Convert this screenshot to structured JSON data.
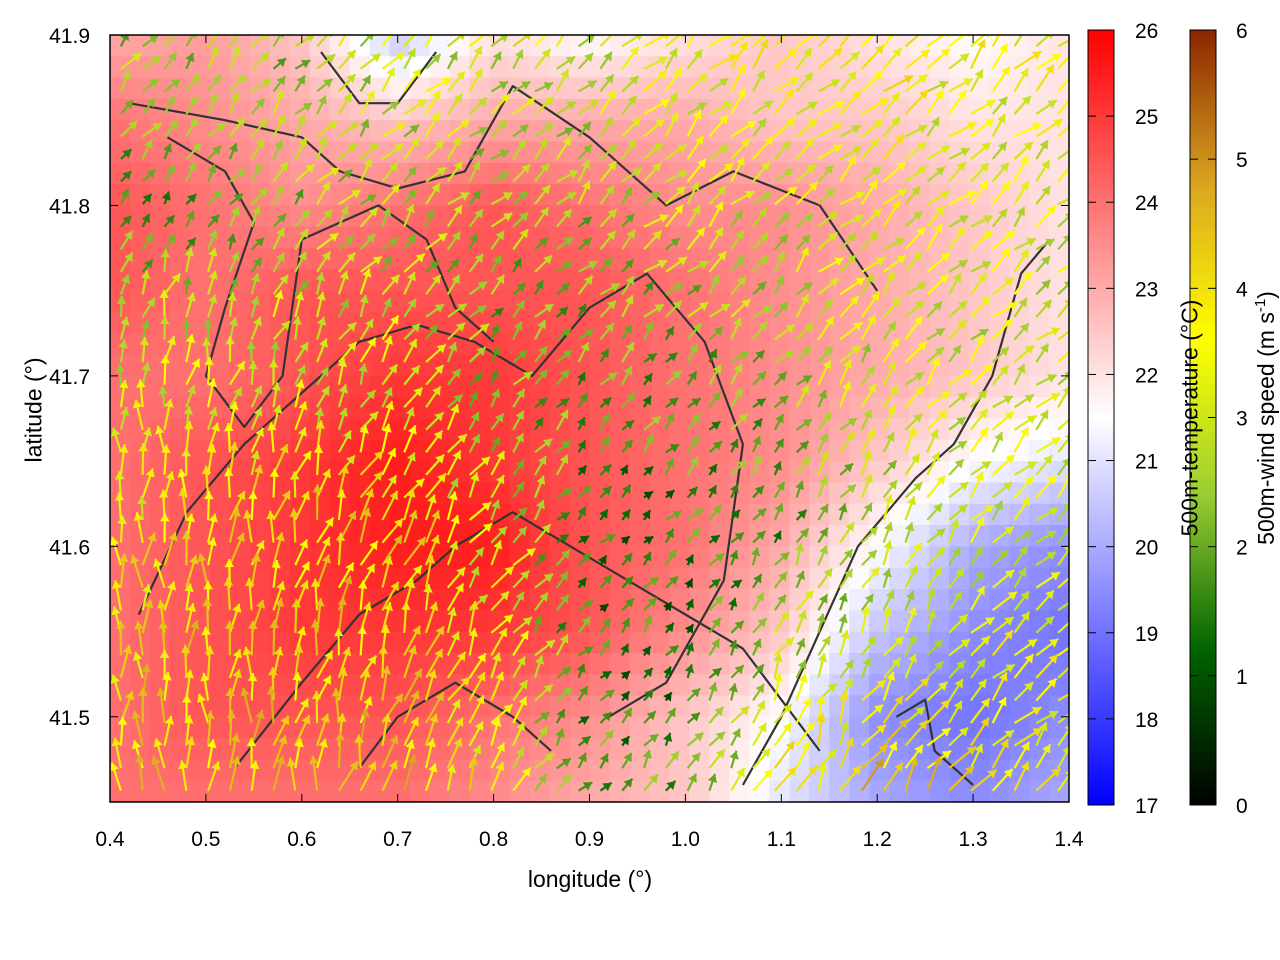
{
  "chart_data": {
    "type": "heatmap",
    "title": "",
    "xlabel": "longitude (°)",
    "ylabel": "latitude (°)",
    "xlim": [
      0.4,
      1.4
    ],
    "ylim": [
      41.45,
      41.9
    ],
    "x_ticks": [
      "0.4",
      "0.5",
      "0.6",
      "0.7",
      "0.8",
      "0.9",
      "1.0",
      "1.1",
      "1.2",
      "1.3",
      "1.4"
    ],
    "y_ticks": [
      "41.5",
      "41.6",
      "41.7",
      "41.8",
      "41.9"
    ],
    "grid": false,
    "colorbars": [
      {
        "label": "500m-temperature (°C)",
        "range": [
          17,
          26
        ],
        "ticks": [
          "17",
          "18",
          "19",
          "20",
          "21",
          "22",
          "23",
          "24",
          "25",
          "26"
        ],
        "colors": [
          "#0000ff",
          "#ffffff",
          "#ff0000"
        ]
      },
      {
        "label_main": "500m-wind speed (m s",
        "label_sup": "-1",
        "label_end": ")",
        "range": [
          0,
          6
        ],
        "ticks": [
          "0",
          "1",
          "2",
          "3",
          "4",
          "5",
          "6"
        ],
        "colors": [
          "#000000",
          "#006400",
          "#9acd32",
          "#ffff00",
          "#daa520",
          "#8b2500"
        ]
      }
    ],
    "temperature_field": {
      "description_values": "approximate 500m-temperature (°C) on a 10x9 lon/lat grid",
      "lon": [
        0.4,
        0.5,
        0.6,
        0.7,
        0.8,
        0.9,
        1.0,
        1.1,
        1.2,
        1.3,
        1.4
      ],
      "lat": [
        41.9,
        41.85,
        41.8,
        41.75,
        41.7,
        41.65,
        41.6,
        41.55,
        41.5,
        41.45
      ],
      "values": [
        [
          23.0,
          23.2,
          22.5,
          20.5,
          22.0,
          21.5,
          22.0,
          22.5,
          22.0,
          21.5,
          22.0
        ],
        [
          24.0,
          23.5,
          23.0,
          22.5,
          23.0,
          23.0,
          23.0,
          22.5,
          22.5,
          22.0,
          22.0
        ],
        [
          24.5,
          24.0,
          23.5,
          24.0,
          24.5,
          24.0,
          23.5,
          23.5,
          23.0,
          22.5,
          22.0
        ],
        [
          24.5,
          24.0,
          24.5,
          24.5,
          24.5,
          24.5,
          24.0,
          23.5,
          23.0,
          22.5,
          22.0
        ],
        [
          24.0,
          24.0,
          24.5,
          25.0,
          25.0,
          24.5,
          24.0,
          23.5,
          23.0,
          22.5,
          22.0
        ],
        [
          24.0,
          24.5,
          25.0,
          25.5,
          25.0,
          24.5,
          24.0,
          23.5,
          22.5,
          21.5,
          21.0
        ],
        [
          24.0,
          24.5,
          25.0,
          25.5,
          25.5,
          24.5,
          24.0,
          23.0,
          21.5,
          20.0,
          19.5
        ],
        [
          24.0,
          24.5,
          25.0,
          25.0,
          25.0,
          24.5,
          23.5,
          22.5,
          20.5,
          19.5,
          19.0
        ],
        [
          24.0,
          24.5,
          24.5,
          24.5,
          24.0,
          23.5,
          22.5,
          21.5,
          19.5,
          19.0,
          19.5
        ],
        [
          24.0,
          24.0,
          24.0,
          24.0,
          23.5,
          23.0,
          22.5,
          21.0,
          20.0,
          19.5,
          20.0
        ]
      ]
    },
    "wind_field": {
      "lon": [
        0.4,
        0.5,
        0.6,
        0.7,
        0.8,
        0.9,
        1.0,
        1.1,
        1.2,
        1.3,
        1.4
      ],
      "lat": [
        41.9,
        41.8,
        41.7,
        41.6,
        41.5,
        41.45
      ],
      "speed": [
        [
          2.5,
          2.5,
          2.5,
          3.0,
          3.0,
          3.0,
          3.5,
          3.5,
          3.5,
          3.5,
          3.5
        ],
        [
          2.0,
          2.0,
          2.5,
          2.5,
          2.5,
          2.5,
          3.0,
          3.0,
          3.5,
          3.0,
          3.0
        ],
        [
          3.0,
          3.0,
          3.0,
          3.0,
          2.0,
          2.0,
          2.0,
          2.5,
          3.0,
          3.0,
          3.0
        ],
        [
          3.5,
          4.0,
          4.0,
          4.0,
          3.0,
          1.5,
          1.5,
          2.0,
          2.5,
          3.0,
          3.0
        ],
        [
          4.0,
          4.0,
          4.0,
          4.0,
          3.5,
          1.5,
          1.5,
          3.0,
          3.5,
          3.5,
          3.5
        ],
        [
          4.0,
          4.0,
          4.5,
          4.5,
          3.5,
          2.0,
          2.0,
          4.0,
          4.5,
          4.0,
          3.5
        ]
      ],
      "direction_to_deg": [
        [
          45,
          50,
          50,
          45,
          45,
          45,
          45,
          45,
          45,
          45,
          45
        ],
        [
          60,
          55,
          50,
          50,
          45,
          45,
          45,
          45,
          45,
          45,
          45
        ],
        [
          90,
          80,
          70,
          60,
          50,
          45,
          45,
          50,
          50,
          45,
          45
        ],
        [
          90,
          85,
          75,
          65,
          55,
          45,
          50,
          60,
          60,
          50,
          45
        ],
        [
          90,
          90,
          80,
          70,
          60,
          50,
          55,
          65,
          60,
          50,
          45
        ],
        [
          90,
          90,
          80,
          70,
          60,
          50,
          60,
          65,
          60,
          50,
          45
        ]
      ]
    }
  }
}
